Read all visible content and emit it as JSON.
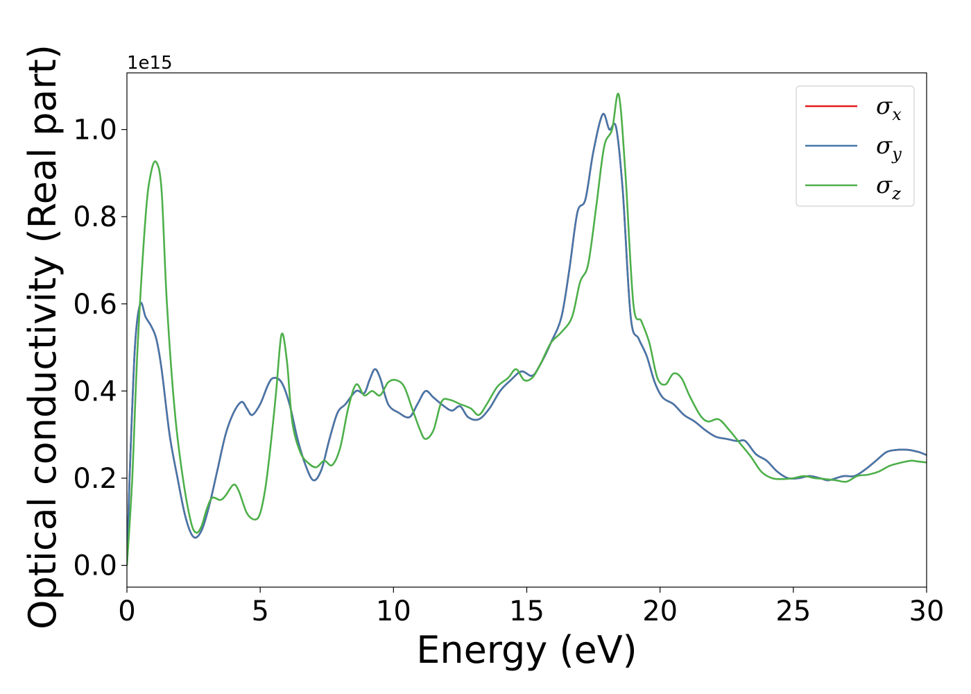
{
  "chart_data": {
    "type": "line",
    "title": "",
    "xlabel": "Energy (eV)",
    "ylabel": "Optical conductivity (Real part)",
    "y_offset_label": "1e15",
    "xlim": [
      0,
      30
    ],
    "ylim": [
      -0.05,
      1.13
    ],
    "xticks": [
      0,
      5,
      10,
      15,
      20,
      25,
      30
    ],
    "xtick_labels": [
      "0",
      "5",
      "10",
      "15",
      "20",
      "25",
      "30"
    ],
    "yticks": [
      0.0,
      0.2,
      0.4,
      0.6,
      0.8,
      1.0
    ],
    "ytick_labels": [
      "0.0",
      "0.2",
      "0.4",
      "0.6",
      "0.8",
      "1.0"
    ],
    "grid": false,
    "legend_position": "top-right",
    "series": [
      {
        "name": "σx",
        "symbol": "σ",
        "subscript": "x",
        "color": "#e41a1c",
        "points": [
          [
            0,
            0
          ],
          [
            0.1,
            0.2
          ],
          [
            0.3,
            0.5
          ],
          [
            0.5,
            0.6
          ],
          [
            0.7,
            0.57
          ],
          [
            0.9,
            0.55
          ],
          [
            1.1,
            0.52
          ],
          [
            1.3,
            0.45
          ],
          [
            1.6,
            0.3
          ],
          [
            1.9,
            0.2
          ],
          [
            2.2,
            0.11
          ],
          [
            2.5,
            0.065
          ],
          [
            2.8,
            0.08
          ],
          [
            3.1,
            0.14
          ],
          [
            3.4,
            0.22
          ],
          [
            3.7,
            0.3
          ],
          [
            4.0,
            0.35
          ],
          [
            4.3,
            0.375
          ],
          [
            4.5,
            0.36
          ],
          [
            4.7,
            0.345
          ],
          [
            5.0,
            0.37
          ],
          [
            5.3,
            0.415
          ],
          [
            5.5,
            0.43
          ],
          [
            5.8,
            0.42
          ],
          [
            6.1,
            0.37
          ],
          [
            6.4,
            0.29
          ],
          [
            6.7,
            0.23
          ],
          [
            7.0,
            0.195
          ],
          [
            7.3,
            0.22
          ],
          [
            7.6,
            0.29
          ],
          [
            7.9,
            0.35
          ],
          [
            8.2,
            0.37
          ],
          [
            8.6,
            0.4
          ],
          [
            8.9,
            0.395
          ],
          [
            9.1,
            0.425
          ],
          [
            9.3,
            0.45
          ],
          [
            9.5,
            0.43
          ],
          [
            9.8,
            0.37
          ],
          [
            10.2,
            0.35
          ],
          [
            10.6,
            0.34
          ],
          [
            10.9,
            0.37
          ],
          [
            11.2,
            0.4
          ],
          [
            11.5,
            0.385
          ],
          [
            11.9,
            0.365
          ],
          [
            12.2,
            0.355
          ],
          [
            12.5,
            0.365
          ],
          [
            12.8,
            0.34
          ],
          [
            13.2,
            0.335
          ],
          [
            13.6,
            0.36
          ],
          [
            14.0,
            0.4
          ],
          [
            14.4,
            0.425
          ],
          [
            14.8,
            0.445
          ],
          [
            15.2,
            0.435
          ],
          [
            15.5,
            0.46
          ],
          [
            15.9,
            0.51
          ],
          [
            16.3,
            0.57
          ],
          [
            16.6,
            0.68
          ],
          [
            16.9,
            0.81
          ],
          [
            17.2,
            0.84
          ],
          [
            17.5,
            0.95
          ],
          [
            17.85,
            1.035
          ],
          [
            18.1,
            1.0
          ],
          [
            18.35,
            1.005
          ],
          [
            18.6,
            0.86
          ],
          [
            18.9,
            0.57
          ],
          [
            19.2,
            0.52
          ],
          [
            19.5,
            0.48
          ],
          [
            19.8,
            0.42
          ],
          [
            20.1,
            0.385
          ],
          [
            20.5,
            0.37
          ],
          [
            20.9,
            0.345
          ],
          [
            21.3,
            0.33
          ],
          [
            21.7,
            0.31
          ],
          [
            22.1,
            0.295
          ],
          [
            22.5,
            0.29
          ],
          [
            22.9,
            0.285
          ],
          [
            23.2,
            0.285
          ],
          [
            23.6,
            0.255
          ],
          [
            24.0,
            0.24
          ],
          [
            24.4,
            0.215
          ],
          [
            24.8,
            0.2
          ],
          [
            25.2,
            0.2
          ],
          [
            25.6,
            0.205
          ],
          [
            26.0,
            0.2
          ],
          [
            26.3,
            0.195
          ],
          [
            26.6,
            0.2
          ],
          [
            26.9,
            0.205
          ],
          [
            27.3,
            0.205
          ],
          [
            27.7,
            0.22
          ],
          [
            28.1,
            0.24
          ],
          [
            28.5,
            0.26
          ],
          [
            28.9,
            0.265
          ],
          [
            29.3,
            0.265
          ],
          [
            29.7,
            0.26
          ],
          [
            30.0,
            0.253
          ]
        ]
      },
      {
        "name": "σy",
        "symbol": "σ",
        "subscript": "y",
        "color": "#4477aa",
        "points": [
          [
            0,
            0
          ],
          [
            0.1,
            0.2
          ],
          [
            0.3,
            0.5
          ],
          [
            0.5,
            0.6
          ],
          [
            0.7,
            0.57
          ],
          [
            0.9,
            0.55
          ],
          [
            1.1,
            0.52
          ],
          [
            1.3,
            0.45
          ],
          [
            1.6,
            0.3
          ],
          [
            1.9,
            0.2
          ],
          [
            2.2,
            0.11
          ],
          [
            2.5,
            0.065
          ],
          [
            2.8,
            0.08
          ],
          [
            3.1,
            0.14
          ],
          [
            3.4,
            0.22
          ],
          [
            3.7,
            0.3
          ],
          [
            4.0,
            0.35
          ],
          [
            4.3,
            0.375
          ],
          [
            4.5,
            0.36
          ],
          [
            4.7,
            0.345
          ],
          [
            5.0,
            0.37
          ],
          [
            5.3,
            0.415
          ],
          [
            5.5,
            0.43
          ],
          [
            5.8,
            0.42
          ],
          [
            6.1,
            0.37
          ],
          [
            6.4,
            0.29
          ],
          [
            6.7,
            0.23
          ],
          [
            7.0,
            0.195
          ],
          [
            7.3,
            0.22
          ],
          [
            7.6,
            0.29
          ],
          [
            7.9,
            0.35
          ],
          [
            8.2,
            0.37
          ],
          [
            8.6,
            0.4
          ],
          [
            8.9,
            0.395
          ],
          [
            9.1,
            0.425
          ],
          [
            9.3,
            0.45
          ],
          [
            9.5,
            0.43
          ],
          [
            9.8,
            0.37
          ],
          [
            10.2,
            0.35
          ],
          [
            10.6,
            0.34
          ],
          [
            10.9,
            0.37
          ],
          [
            11.2,
            0.4
          ],
          [
            11.5,
            0.385
          ],
          [
            11.9,
            0.365
          ],
          [
            12.2,
            0.355
          ],
          [
            12.5,
            0.365
          ],
          [
            12.8,
            0.34
          ],
          [
            13.2,
            0.335
          ],
          [
            13.6,
            0.36
          ],
          [
            14.0,
            0.4
          ],
          [
            14.4,
            0.425
          ],
          [
            14.8,
            0.445
          ],
          [
            15.2,
            0.435
          ],
          [
            15.5,
            0.46
          ],
          [
            15.9,
            0.51
          ],
          [
            16.3,
            0.57
          ],
          [
            16.6,
            0.68
          ],
          [
            16.9,
            0.81
          ],
          [
            17.2,
            0.84
          ],
          [
            17.5,
            0.95
          ],
          [
            17.85,
            1.035
          ],
          [
            18.1,
            1.0
          ],
          [
            18.35,
            1.005
          ],
          [
            18.6,
            0.86
          ],
          [
            18.9,
            0.57
          ],
          [
            19.2,
            0.52
          ],
          [
            19.5,
            0.48
          ],
          [
            19.8,
            0.42
          ],
          [
            20.1,
            0.385
          ],
          [
            20.5,
            0.37
          ],
          [
            20.9,
            0.345
          ],
          [
            21.3,
            0.33
          ],
          [
            21.7,
            0.31
          ],
          [
            22.1,
            0.295
          ],
          [
            22.5,
            0.29
          ],
          [
            22.9,
            0.285
          ],
          [
            23.2,
            0.285
          ],
          [
            23.6,
            0.255
          ],
          [
            24.0,
            0.24
          ],
          [
            24.4,
            0.215
          ],
          [
            24.8,
            0.2
          ],
          [
            25.2,
            0.2
          ],
          [
            25.6,
            0.205
          ],
          [
            26.0,
            0.2
          ],
          [
            26.3,
            0.195
          ],
          [
            26.6,
            0.2
          ],
          [
            26.9,
            0.205
          ],
          [
            27.3,
            0.205
          ],
          [
            27.7,
            0.22
          ],
          [
            28.1,
            0.24
          ],
          [
            28.5,
            0.26
          ],
          [
            28.9,
            0.265
          ],
          [
            29.3,
            0.265
          ],
          [
            29.7,
            0.26
          ],
          [
            30.0,
            0.253
          ]
        ]
      },
      {
        "name": "σz",
        "symbol": "σ",
        "subscript": "z",
        "color": "#4daf4a",
        "points": [
          [
            0,
            0
          ],
          [
            0.2,
            0.2
          ],
          [
            0.4,
            0.5
          ],
          [
            0.7,
            0.8
          ],
          [
            0.9,
            0.9
          ],
          [
            1.1,
            0.925
          ],
          [
            1.3,
            0.86
          ],
          [
            1.5,
            0.6
          ],
          [
            1.8,
            0.35
          ],
          [
            2.1,
            0.2
          ],
          [
            2.4,
            0.1
          ],
          [
            2.6,
            0.075
          ],
          [
            2.8,
            0.09
          ],
          [
            3.0,
            0.13
          ],
          [
            3.2,
            0.155
          ],
          [
            3.5,
            0.15
          ],
          [
            3.7,
            0.16
          ],
          [
            4.0,
            0.185
          ],
          [
            4.2,
            0.17
          ],
          [
            4.5,
            0.12
          ],
          [
            4.8,
            0.105
          ],
          [
            5.0,
            0.12
          ],
          [
            5.2,
            0.18
          ],
          [
            5.4,
            0.28
          ],
          [
            5.6,
            0.4
          ],
          [
            5.8,
            0.53
          ],
          [
            6.0,
            0.47
          ],
          [
            6.2,
            0.33
          ],
          [
            6.5,
            0.26
          ],
          [
            6.8,
            0.235
          ],
          [
            7.1,
            0.225
          ],
          [
            7.4,
            0.24
          ],
          [
            7.7,
            0.23
          ],
          [
            8.0,
            0.27
          ],
          [
            8.3,
            0.36
          ],
          [
            8.6,
            0.415
          ],
          [
            8.9,
            0.39
          ],
          [
            9.2,
            0.4
          ],
          [
            9.5,
            0.39
          ],
          [
            9.8,
            0.42
          ],
          [
            10.1,
            0.425
          ],
          [
            10.4,
            0.41
          ],
          [
            10.7,
            0.36
          ],
          [
            11.0,
            0.31
          ],
          [
            11.2,
            0.29
          ],
          [
            11.5,
            0.31
          ],
          [
            11.8,
            0.375
          ],
          [
            12.1,
            0.38
          ],
          [
            12.5,
            0.37
          ],
          [
            12.9,
            0.36
          ],
          [
            13.2,
            0.345
          ],
          [
            13.5,
            0.37
          ],
          [
            13.9,
            0.41
          ],
          [
            14.3,
            0.43
          ],
          [
            14.6,
            0.45
          ],
          [
            14.9,
            0.425
          ],
          [
            15.2,
            0.43
          ],
          [
            15.5,
            0.46
          ],
          [
            15.9,
            0.51
          ],
          [
            16.3,
            0.535
          ],
          [
            16.7,
            0.57
          ],
          [
            17.0,
            0.65
          ],
          [
            17.3,
            0.69
          ],
          [
            17.6,
            0.82
          ],
          [
            17.9,
            0.96
          ],
          [
            18.2,
            1.0
          ],
          [
            18.45,
            1.08
          ],
          [
            18.7,
            0.9
          ],
          [
            19.0,
            0.6
          ],
          [
            19.3,
            0.56
          ],
          [
            19.6,
            0.51
          ],
          [
            19.9,
            0.43
          ],
          [
            20.2,
            0.415
          ],
          [
            20.5,
            0.44
          ],
          [
            20.8,
            0.43
          ],
          [
            21.1,
            0.39
          ],
          [
            21.5,
            0.345
          ],
          [
            21.8,
            0.33
          ],
          [
            22.2,
            0.335
          ],
          [
            22.6,
            0.31
          ],
          [
            23.0,
            0.28
          ],
          [
            23.4,
            0.25
          ],
          [
            23.8,
            0.215
          ],
          [
            24.2,
            0.2
          ],
          [
            24.6,
            0.198
          ],
          [
            25.0,
            0.2
          ],
          [
            25.4,
            0.205
          ],
          [
            25.8,
            0.2
          ],
          [
            26.2,
            0.198
          ],
          [
            26.6,
            0.195
          ],
          [
            27.0,
            0.192
          ],
          [
            27.4,
            0.205
          ],
          [
            27.8,
            0.208
          ],
          [
            28.2,
            0.215
          ],
          [
            28.6,
            0.228
          ],
          [
            29.0,
            0.235
          ],
          [
            29.4,
            0.24
          ],
          [
            29.7,
            0.238
          ],
          [
            30.0,
            0.236
          ]
        ]
      }
    ]
  }
}
